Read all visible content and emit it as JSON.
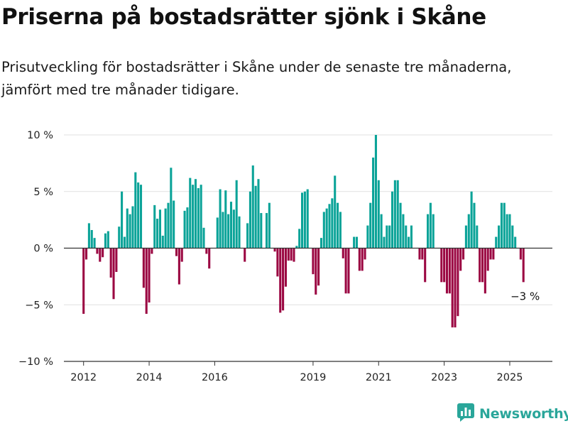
{
  "title": "Priserna på bostadsrätter sjönk i Skåne",
  "subtitle": "Prisutveckling för bostadsrätter i Skåne under de senaste tre månaderna, jämfört med tre månader tidigare.",
  "brand": {
    "name": "Newsworthy",
    "icon": "newsworthy-logo-icon"
  },
  "colors": {
    "positive": "#0aa398",
    "negative": "#9b0742",
    "grid": "#e1e1e1",
    "zero": "#333333"
  },
  "chart_data": {
    "type": "bar",
    "title": "Priserna på bostadsrätter sjönk i Skåne",
    "subtitle": "Prisutveckling för bostadsrätter i Skåne under de senaste tre månaderna, jämfört med tre månader tidigare.",
    "xlabel": "",
    "ylabel": "",
    "unit": "%",
    "ylim": [
      -10,
      10
    ],
    "xlim": [
      2011.4,
      2026.3
    ],
    "y_ticks": [
      -10,
      -5,
      0,
      5,
      10
    ],
    "y_tick_labels": [
      "−10 %",
      "−5 %",
      "0 %",
      "5 %",
      "10 %"
    ],
    "x_ticks": [
      2012,
      2014,
      2016,
      2019,
      2021,
      2023,
      2025
    ],
    "x_tick_labels": [
      "2012",
      "2014",
      "2016",
      "2019",
      "2021",
      "2023",
      "2025"
    ],
    "grid": true,
    "annotation": "−3 %",
    "frequency": "monthly",
    "series": [
      {
        "start": "2012-01",
        "values": [
          -5.8,
          -1.0,
          2.2,
          1.6,
          0.9,
          -0.5,
          -1.2,
          -0.8,
          1.3,
          1.5,
          -2.6,
          -4.5,
          -2.1,
          1.9,
          5.0,
          1.0,
          3.5,
          3.0,
          3.7,
          6.7,
          5.8,
          5.6,
          -3.5,
          -5.8,
          -4.8,
          -0.5,
          3.8,
          2.6,
          3.4,
          1.1,
          3.5,
          4.0,
          7.1,
          4.2,
          -0.7,
          -3.2,
          -1.2,
          3.3,
          3.6,
          6.2,
          5.6,
          6.1,
          5.3,
          5.6,
          1.8,
          -0.5,
          -1.8,
          0.0,
          0.0,
          2.7,
          5.2,
          3.2,
          5.1,
          3.0,
          4.1,
          3.4,
          6.0,
          2.8,
          0.0,
          -1.2,
          2.2,
          5.0,
          7.3,
          5.5,
          6.1,
          3.1,
          0.0,
          3.1,
          4.0,
          0.0,
          -0.3,
          -2.5,
          -5.7,
          -5.5,
          -3.4,
          -1.1,
          -1.1,
          -1.2,
          0.2,
          1.7,
          4.9,
          5.0,
          5.2,
          0.0,
          -2.3,
          -4.1,
          -3.3,
          0.9,
          3.2,
          3.5,
          3.9,
          4.4,
          6.4,
          4.0,
          3.2,
          -0.9,
          -4.0,
          -4.0,
          0.0,
          1.0,
          1.0,
          -2.0,
          -2.0,
          -1.0,
          2.0,
          4.0,
          8.0,
          10.0,
          6.0,
          3.0,
          1.0,
          2.0,
          2.0,
          5.0,
          6.0,
          6.0,
          4.0,
          3.0,
          2.0,
          1.0,
          2.0,
          0.0,
          0.0,
          -1.0,
          -1.0,
          -3.0,
          3.0,
          4.0,
          3.0,
          0.0,
          0.0,
          -3.0,
          -3.0,
          -4.0,
          -4.0,
          -7.0,
          -7.0,
          -6.0,
          -2.0,
          -1.0,
          2.0,
          3.0,
          5.0,
          4.0,
          2.0,
          -3.0,
          -3.0,
          -4.0,
          -2.0,
          -1.0,
          -1.0,
          1.0,
          2.0,
          4.0,
          4.0,
          3.0,
          3.0,
          2.0,
          1.0,
          0.0,
          -1.0,
          -3.0
        ]
      }
    ]
  }
}
